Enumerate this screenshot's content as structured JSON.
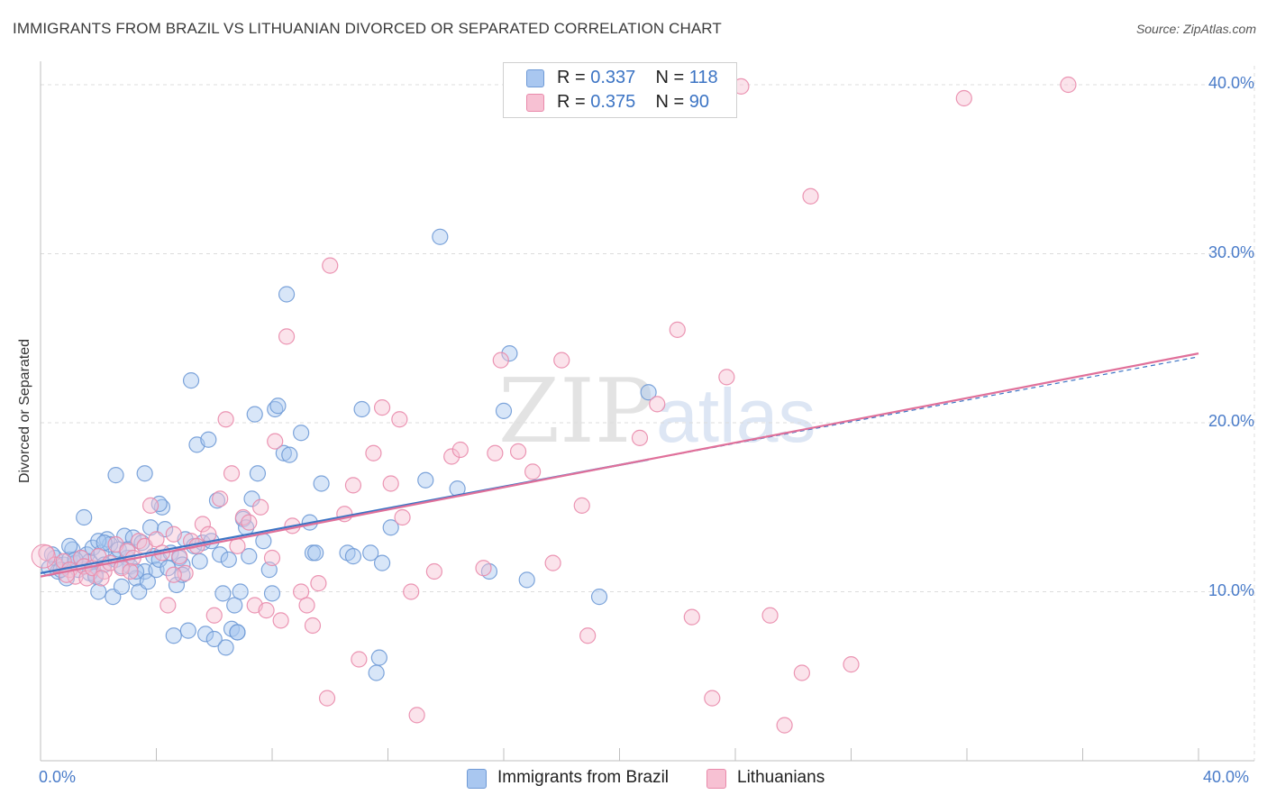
{
  "title": "IMMIGRANTS FROM BRAZIL VS LITHUANIAN DIVORCED OR SEPARATED CORRELATION CHART",
  "source": "Source: ZipAtlas.com",
  "watermark": {
    "zip": "ZIP",
    "atlas": "atlas"
  },
  "legend": {
    "r_label": "R =",
    "n_label": "N =",
    "rows": [
      {
        "r": "0.337",
        "n": "118",
        "color": "#a9c7f0",
        "edge": "#6f9ad6"
      },
      {
        "r": "0.375",
        "n": "90",
        "color": "#f7c1d3",
        "edge": "#e98aab"
      }
    ]
  },
  "bottom_legend": [
    {
      "label": "Immigrants from Brazil",
      "color": "#a9c7f0",
      "edge": "#6f9ad6"
    },
    {
      "label": "Lithuanians",
      "color": "#f7c1d3",
      "edge": "#e98aab"
    }
  ],
  "chart_data": {
    "type": "scatter",
    "title": "IMMIGRANTS FROM BRAZIL VS LITHUANIAN DIVORCED OR SEPARATED CORRELATION CHART",
    "xlabel": "",
    "ylabel": "Divorced or Separated",
    "xlim": [
      0,
      40
    ],
    "ylim": [
      0,
      40.8
    ],
    "x_tick_labels": [
      "0.0%",
      "40.0%"
    ],
    "y_ticks": [
      10,
      20,
      30,
      40
    ],
    "y_tick_labels": [
      "10.0%",
      "20.0%",
      "30.0%",
      "40.0%"
    ],
    "grid": true,
    "series": [
      {
        "name": "Immigrants from Brazil",
        "color": "#6f9ad6",
        "fill": "#a9c7f0",
        "line_color": "#3c74c4",
        "trend": {
          "x": [
            0,
            40
          ],
          "y": [
            11.1,
            23.9
          ]
        },
        "points": [
          [
            0.3,
            11.4
          ],
          [
            0.5,
            12.0
          ],
          [
            0.6,
            11.2
          ],
          [
            0.8,
            11.6
          ],
          [
            0.9,
            10.8
          ],
          [
            1.0,
            11.9
          ],
          [
            1.1,
            12.5
          ],
          [
            1.2,
            11.7
          ],
          [
            1.3,
            11.3
          ],
          [
            1.4,
            12.0
          ],
          [
            1.5,
            11.5
          ],
          [
            1.6,
            12.2
          ],
          [
            1.7,
            11.8
          ],
          [
            1.8,
            12.6
          ],
          [
            1.9,
            11.0
          ],
          [
            2.0,
            10.0
          ],
          [
            2.1,
            12.3
          ],
          [
            2.2,
            11.6
          ],
          [
            2.3,
            13.1
          ],
          [
            2.4,
            12.8
          ],
          [
            2.5,
            9.7
          ],
          [
            2.6,
            11.9
          ],
          [
            2.7,
            12.5
          ],
          [
            2.8,
            10.3
          ],
          [
            2.9,
            13.3
          ],
          [
            3.0,
            12.0
          ],
          [
            3.1,
            11.5
          ],
          [
            3.2,
            13.2
          ],
          [
            3.3,
            10.8
          ],
          [
            3.4,
            10.0
          ],
          [
            3.5,
            12.9
          ],
          [
            3.6,
            11.2
          ],
          [
            3.7,
            10.6
          ],
          [
            3.8,
            13.8
          ],
          [
            3.9,
            12.1
          ],
          [
            4.0,
            11.3
          ],
          [
            4.1,
            11.9
          ],
          [
            4.2,
            15.0
          ],
          [
            4.3,
            13.7
          ],
          [
            4.4,
            11.4
          ],
          [
            4.5,
            12.3
          ],
          [
            4.6,
            7.4
          ],
          [
            4.7,
            10.4
          ],
          [
            4.8,
            12.0
          ],
          [
            4.9,
            11.6
          ],
          [
            5.0,
            13.1
          ],
          [
            5.1,
            7.7
          ],
          [
            5.2,
            22.5
          ],
          [
            5.3,
            12.7
          ],
          [
            5.4,
            18.7
          ],
          [
            5.5,
            11.8
          ],
          [
            5.6,
            12.9
          ],
          [
            5.7,
            7.5
          ],
          [
            5.8,
            19.0
          ],
          [
            5.9,
            13.0
          ],
          [
            6.0,
            7.2
          ],
          [
            6.1,
            15.4
          ],
          [
            6.2,
            12.2
          ],
          [
            6.3,
            9.9
          ],
          [
            6.4,
            6.7
          ],
          [
            6.5,
            11.9
          ],
          [
            6.6,
            7.8
          ],
          [
            6.7,
            9.2
          ],
          [
            6.8,
            7.6
          ],
          [
            6.9,
            10.0
          ],
          [
            7.0,
            14.3
          ],
          [
            7.1,
            13.8
          ],
          [
            7.2,
            12.1
          ],
          [
            7.3,
            15.5
          ],
          [
            7.4,
            20.5
          ],
          [
            7.5,
            17.0
          ],
          [
            7.7,
            13.0
          ],
          [
            7.9,
            11.3
          ],
          [
            8.0,
            9.9
          ],
          [
            8.1,
            20.8
          ],
          [
            8.2,
            21.0
          ],
          [
            8.4,
            18.2
          ],
          [
            8.5,
            27.6
          ],
          [
            8.6,
            18.1
          ],
          [
            9.0,
            19.4
          ],
          [
            9.3,
            14.1
          ],
          [
            9.4,
            12.3
          ],
          [
            9.5,
            12.3
          ],
          [
            9.7,
            16.4
          ],
          [
            10.6,
            12.3
          ],
          [
            10.8,
            12.1
          ],
          [
            11.1,
            20.8
          ],
          [
            11.4,
            12.3
          ],
          [
            11.6,
            5.2
          ],
          [
            11.7,
            6.1
          ],
          [
            11.8,
            11.7
          ],
          [
            12.1,
            13.8
          ],
          [
            13.3,
            16.6
          ],
          [
            13.8,
            31.0
          ],
          [
            14.4,
            16.1
          ],
          [
            15.5,
            11.2
          ],
          [
            16.0,
            20.7
          ],
          [
            16.2,
            24.1
          ],
          [
            16.8,
            10.7
          ],
          [
            19.3,
            9.7
          ],
          [
            21.0,
            21.8
          ],
          [
            1.5,
            14.4
          ],
          [
            2.6,
            16.9
          ],
          [
            3.6,
            17.0
          ],
          [
            4.1,
            15.2
          ],
          [
            1.0,
            12.7
          ],
          [
            2.0,
            13.0
          ],
          [
            1.7,
            11.1
          ],
          [
            3.0,
            12.5
          ],
          [
            4.9,
            11.0
          ],
          [
            6.8,
            7.6
          ],
          [
            0.7,
            11.3
          ],
          [
            1.2,
            11.9
          ],
          [
            2.2,
            12.9
          ],
          [
            2.8,
            11.5
          ],
          [
            0.4,
            12.2
          ],
          [
            1.9,
            10.9
          ],
          [
            3.3,
            11.2
          ]
        ]
      },
      {
        "name": "Lithuanians",
        "color": "#e98aab",
        "fill": "#f7c1d3",
        "line_color": "#e0709a",
        "trend": {
          "x": [
            0,
            40
          ],
          "y": [
            10.9,
            24.1
          ]
        },
        "points": [
          [
            0.2,
            12.3
          ],
          [
            0.5,
            11.6
          ],
          [
            0.8,
            11.8
          ],
          [
            1.0,
            11.3
          ],
          [
            1.2,
            10.9
          ],
          [
            1.4,
            12.0
          ],
          [
            1.5,
            11.5
          ],
          [
            1.6,
            10.8
          ],
          [
            1.8,
            11.4
          ],
          [
            2.0,
            12.1
          ],
          [
            2.2,
            11.2
          ],
          [
            2.4,
            11.7
          ],
          [
            2.6,
            12.8
          ],
          [
            2.8,
            11.4
          ],
          [
            3.0,
            12.4
          ],
          [
            3.2,
            12.0
          ],
          [
            3.4,
            13.0
          ],
          [
            3.6,
            12.7
          ],
          [
            3.8,
            15.1
          ],
          [
            4.0,
            13.1
          ],
          [
            4.2,
            12.3
          ],
          [
            4.4,
            9.2
          ],
          [
            4.6,
            13.4
          ],
          [
            4.8,
            12.1
          ],
          [
            5.0,
            11.1
          ],
          [
            5.2,
            13.0
          ],
          [
            5.4,
            12.7
          ],
          [
            5.6,
            14.0
          ],
          [
            5.8,
            13.4
          ],
          [
            6.0,
            8.6
          ],
          [
            6.2,
            15.5
          ],
          [
            6.4,
            20.2
          ],
          [
            6.6,
            17.0
          ],
          [
            6.8,
            12.7
          ],
          [
            7.0,
            14.4
          ],
          [
            7.2,
            14.1
          ],
          [
            7.4,
            9.2
          ],
          [
            7.6,
            15.0
          ],
          [
            7.8,
            8.9
          ],
          [
            8.0,
            12.0
          ],
          [
            8.1,
            18.9
          ],
          [
            8.3,
            8.3
          ],
          [
            8.5,
            25.1
          ],
          [
            8.7,
            13.9
          ],
          [
            9.0,
            10.0
          ],
          [
            9.2,
            9.2
          ],
          [
            9.4,
            8.0
          ],
          [
            9.6,
            10.5
          ],
          [
            10.0,
            29.3
          ],
          [
            10.5,
            14.6
          ],
          [
            10.8,
            16.3
          ],
          [
            11.0,
            6.0
          ],
          [
            11.5,
            18.2
          ],
          [
            11.8,
            20.9
          ],
          [
            12.1,
            16.4
          ],
          [
            12.5,
            14.4
          ],
          [
            12.8,
            10.0
          ],
          [
            13.0,
            2.7
          ],
          [
            13.6,
            11.2
          ],
          [
            14.2,
            18.0
          ],
          [
            14.5,
            18.4
          ],
          [
            15.3,
            11.4
          ],
          [
            15.7,
            18.2
          ],
          [
            15.9,
            23.7
          ],
          [
            16.5,
            18.3
          ],
          [
            17.0,
            17.1
          ],
          [
            17.7,
            11.7
          ],
          [
            18.0,
            23.7
          ],
          [
            18.7,
            15.1
          ],
          [
            18.9,
            7.4
          ],
          [
            20.7,
            19.1
          ],
          [
            21.3,
            21.1
          ],
          [
            22.0,
            25.5
          ],
          [
            22.5,
            8.5
          ],
          [
            23.2,
            3.7
          ],
          [
            23.7,
            22.7
          ],
          [
            24.2,
            39.9
          ],
          [
            25.2,
            8.6
          ],
          [
            25.7,
            2.1
          ],
          [
            26.3,
            5.2
          ],
          [
            26.6,
            33.4
          ],
          [
            28.0,
            5.7
          ],
          [
            31.9,
            39.2
          ],
          [
            35.5,
            40.0
          ],
          [
            9.9,
            3.7
          ],
          [
            12.4,
            20.2
          ],
          [
            4.6,
            11.0
          ],
          [
            3.1,
            11.2
          ],
          [
            2.1,
            10.8
          ],
          [
            0.9,
            11.0
          ]
        ]
      }
    ]
  }
}
